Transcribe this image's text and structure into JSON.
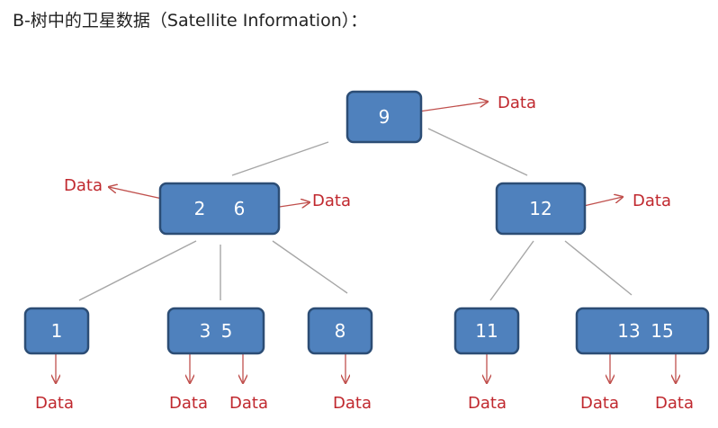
{
  "heading": "B-树中的卫星数据（Satellite Information）：",
  "data_label": "Data",
  "colors": {
    "node_fill": "#4f81bd",
    "node_border": "#2c4d75",
    "edge": "#a6a6a6",
    "arrow": "#c0504d",
    "data_text": "#c0282e"
  },
  "tree": {
    "root": {
      "keys": [
        "9"
      ]
    },
    "level1": [
      {
        "keys": [
          "2",
          "6"
        ]
      },
      {
        "keys": [
          "12"
        ]
      }
    ],
    "leaves": [
      {
        "keys": [
          "1"
        ]
      },
      {
        "keys": [
          "3",
          "5"
        ]
      },
      {
        "keys": [
          "8"
        ]
      },
      {
        "keys": [
          "11"
        ]
      },
      {
        "keys": [
          "13",
          "15"
        ]
      }
    ]
  }
}
